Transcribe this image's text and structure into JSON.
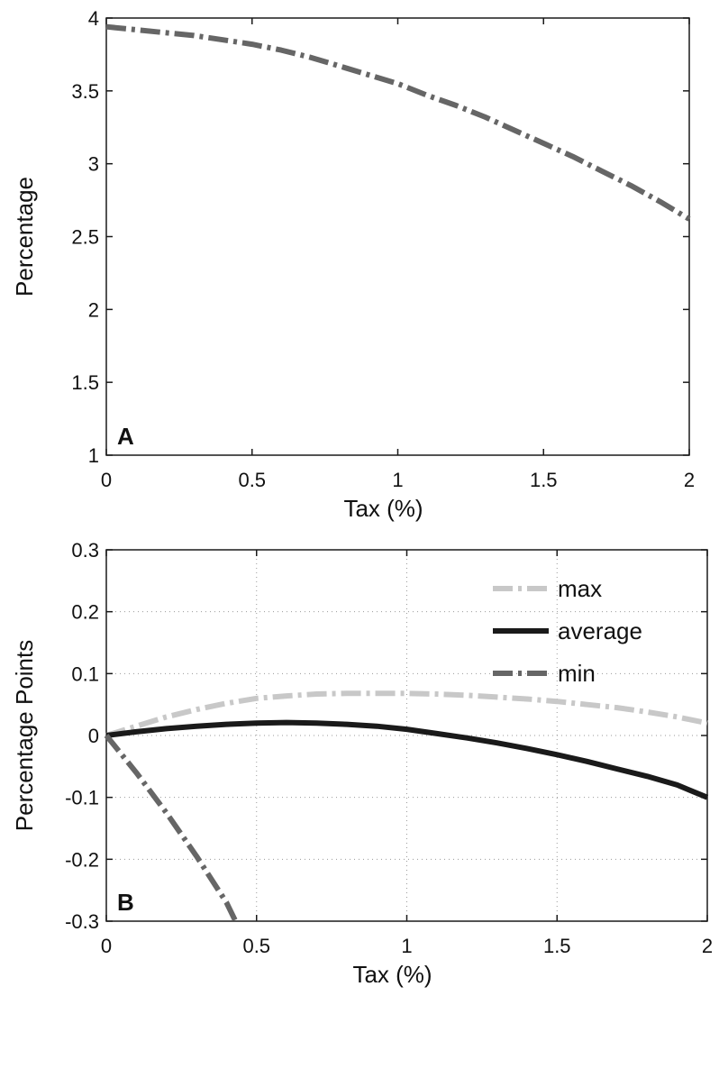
{
  "chart_data": [
    {
      "type": "line",
      "panel_label": "A",
      "title": "",
      "xlabel": "Tax (%)",
      "ylabel": "Percentage",
      "xlim": [
        0,
        2
      ],
      "ylim": [
        1,
        4
      ],
      "xticks": [
        0,
        0.5,
        1,
        1.5,
        2
      ],
      "xtick_labels": [
        "0",
        "0.5",
        "1",
        "1.5",
        "2"
      ],
      "yticks": [
        1,
        1.5,
        2,
        2.5,
        3,
        3.5,
        4
      ],
      "ytick_labels": [
        "1",
        "1.5",
        "2",
        "2.5",
        "3",
        "3.5",
        "4"
      ],
      "grid": false,
      "series": [
        {
          "color": "#666666",
          "dash": "dash-dot",
          "x": [
            0,
            0.1,
            0.2,
            0.3,
            0.4,
            0.5,
            0.6,
            0.7,
            0.8,
            0.9,
            1.0,
            1.1,
            1.2,
            1.3,
            1.4,
            1.5,
            1.6,
            1.7,
            1.8,
            1.9,
            2.0
          ],
          "y": [
            3.94,
            3.92,
            3.9,
            3.88,
            3.85,
            3.82,
            3.78,
            3.73,
            3.67,
            3.61,
            3.55,
            3.47,
            3.4,
            3.32,
            3.23,
            3.14,
            3.05,
            2.95,
            2.85,
            2.74,
            2.62
          ]
        }
      ]
    },
    {
      "type": "line",
      "panel_label": "B",
      "title": "",
      "xlabel": "Tax (%)",
      "ylabel": "Percentage Points",
      "xlim": [
        0,
        2
      ],
      "ylim": [
        -0.3,
        0.3
      ],
      "xticks": [
        0,
        0.5,
        1,
        1.5,
        2
      ],
      "xtick_labels": [
        "0",
        "0.5",
        "1",
        "1.5",
        "2"
      ],
      "yticks": [
        -0.3,
        -0.2,
        -0.1,
        0,
        0.1,
        0.2,
        0.3
      ],
      "ytick_labels": [
        "-0.3",
        "-0.2",
        "-0.1",
        "0",
        "0.1",
        "0.2",
        "0.3"
      ],
      "grid": true,
      "legend": "top-right",
      "series": [
        {
          "name": "max",
          "color": "#c8c8c8",
          "dash": "dash-dot",
          "x": [
            0,
            0.1,
            0.2,
            0.3,
            0.4,
            0.5,
            0.6,
            0.7,
            0.8,
            0.9,
            1.0,
            1.1,
            1.2,
            1.3,
            1.4,
            1.5,
            1.6,
            1.7,
            1.8,
            1.9,
            2.0
          ],
          "y": [
            0,
            0.015,
            0.03,
            0.042,
            0.052,
            0.06,
            0.064,
            0.067,
            0.068,
            0.068,
            0.068,
            0.067,
            0.065,
            0.062,
            0.059,
            0.055,
            0.05,
            0.045,
            0.038,
            0.03,
            0.02
          ]
        },
        {
          "name": "average",
          "color": "#1a1a1a",
          "dash": "solid",
          "x": [
            0,
            0.1,
            0.2,
            0.3,
            0.4,
            0.5,
            0.6,
            0.7,
            0.8,
            0.9,
            1.0,
            1.1,
            1.2,
            1.3,
            1.4,
            1.5,
            1.6,
            1.7,
            1.8,
            1.9,
            2.0
          ],
          "y": [
            0,
            0.006,
            0.011,
            0.015,
            0.018,
            0.02,
            0.021,
            0.02,
            0.018,
            0.015,
            0.01,
            0.003,
            -0.004,
            -0.012,
            -0.021,
            -0.031,
            -0.042,
            -0.054,
            -0.066,
            -0.08,
            -0.1
          ]
        },
        {
          "name": "min",
          "color": "#666666",
          "dash": "dash-dot",
          "x": [
            0,
            0.1,
            0.2,
            0.3,
            0.4,
            0.43
          ],
          "y": [
            0,
            -0.06,
            -0.125,
            -0.195,
            -0.27,
            -0.3
          ]
        }
      ]
    }
  ]
}
